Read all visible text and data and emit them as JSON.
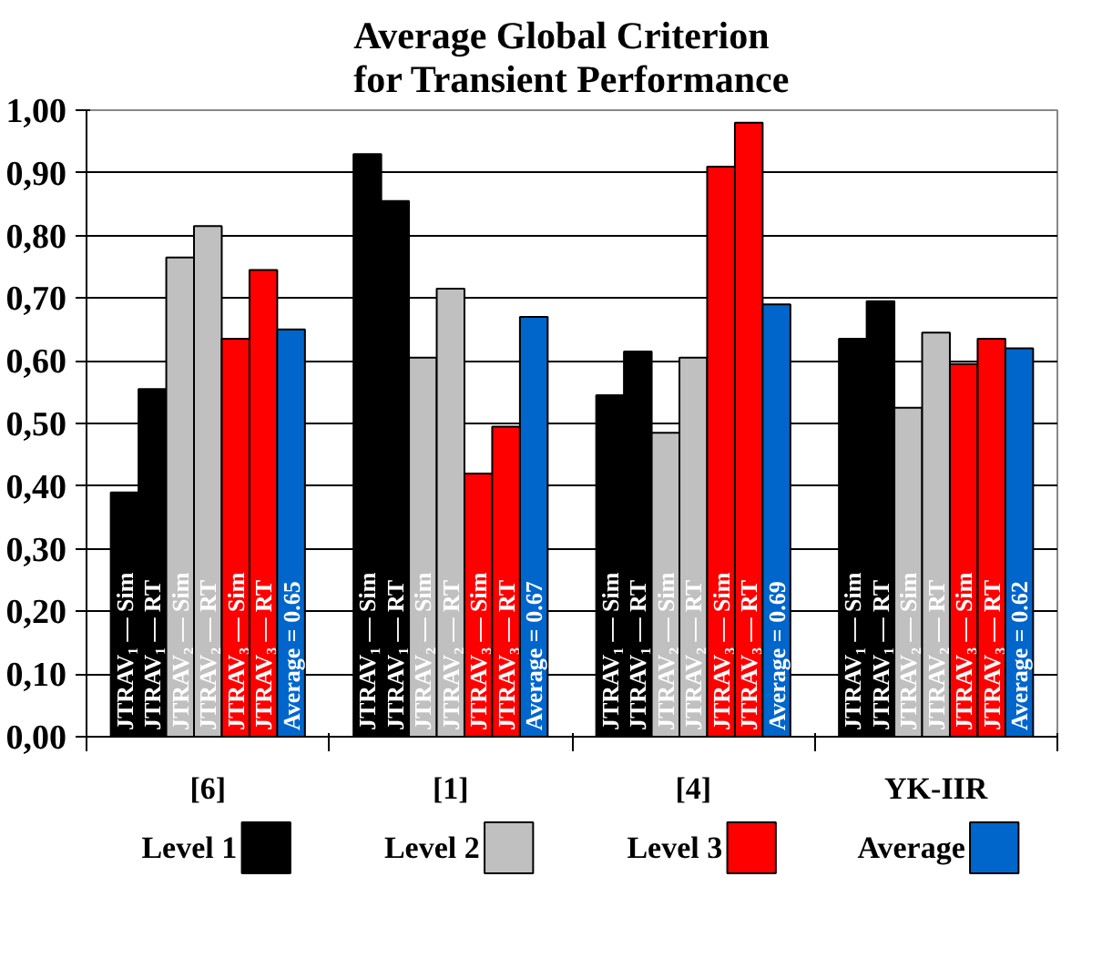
{
  "chart_data": {
    "type": "bar",
    "title": "Average Global Criterion\nfor Transient Performance",
    "categories": [
      "[6]",
      "[1]",
      "[4]",
      "YK-IIR"
    ],
    "series": [
      {
        "name": "Level 1",
        "color": "#000000",
        "values": [
          0.39,
          0.93,
          0.545,
          0.635
        ],
        "value_labels": [
          "JTRAV₁ — Sim",
          "JTRAV₁ — Sim",
          "JTRAV₁ — Sim",
          "JTRAV₁ — Sim"
        ]
      },
      {
        "color": "#000000",
        "values": [
          0.555,
          0.855,
          0.615,
          0.695
        ],
        "value_labels": [
          "JTRAV₁ — RT",
          "JTRAV₁ — RT",
          "JTRAV₁ — RT",
          "JTRAV₁ — RT"
        ]
      },
      {
        "name": "Level 2",
        "color": "#c0c0c0",
        "values": [
          0.765,
          0.605,
          0.485,
          0.525
        ],
        "value_labels": [
          "JTRAV₂ — Sim",
          "JTRAV₂ — Sim",
          "JTRAV₂ — Sim",
          "JTRAV₂ — Sim"
        ]
      },
      {
        "color": "#c0c0c0",
        "values": [
          0.815,
          0.715,
          0.605,
          0.645
        ],
        "value_labels": [
          "JTRAV₂ — RT",
          "JTRAV₂ — RT",
          "JTRAV₂ — RT",
          "JTRAV₂ — RT"
        ]
      },
      {
        "name": "Level 3",
        "color": "#ff0000",
        "values": [
          0.635,
          0.42,
          0.91,
          0.595
        ],
        "value_labels": [
          "JTRAV₃ — Sim",
          "JTRAV₃ — Sim",
          "JTRAV₃ — Sim",
          "JTRAV₃ — Sim"
        ]
      },
      {
        "color": "#ff0000",
        "values": [
          0.745,
          0.495,
          0.98,
          0.635
        ],
        "value_labels": [
          "JTRAV₃ — RT",
          "JTRAV₃ — RT",
          "JTRAV₃ — RT",
          "JTRAV₃ — RT"
        ]
      },
      {
        "name": "Average",
        "color": "#0066cc",
        "values": [
          0.65,
          0.67,
          0.69,
          0.62
        ],
        "value_labels": [
          "Average = 0.65",
          "Average = 0.67",
          "Average = 0.69",
          "Average = 0.62"
        ]
      }
    ],
    "ylim": [
      0,
      1.0
    ],
    "yticks": [
      {
        "value": 0,
        "label": "0,00"
      },
      {
        "value": 0.1,
        "label": "0,10"
      },
      {
        "value": 0.2,
        "label": "0,20"
      },
      {
        "value": 0.3,
        "label": "0,30"
      },
      {
        "value": 0.4,
        "label": "0,40"
      },
      {
        "value": 0.5,
        "label": "0,50"
      },
      {
        "value": 0.6,
        "label": "0,60"
      },
      {
        "value": 0.7,
        "label": "0,70"
      },
      {
        "value": 0.8,
        "label": "0,80"
      },
      {
        "value": 0.9,
        "label": "0,90"
      },
      {
        "value": 1.0,
        "label": "1,00"
      }
    ],
    "grid": "y",
    "legend": "bottom"
  }
}
